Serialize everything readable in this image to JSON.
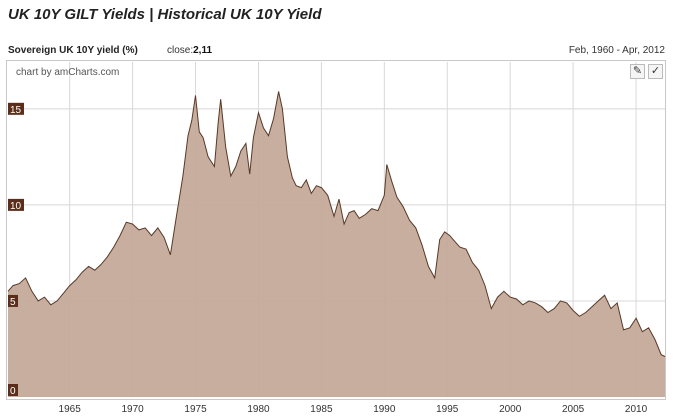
{
  "header": {
    "title": "UK 10Y GILT Yields | Historical UK 10Y Yield",
    "series_label": "Sovereign UK 10Y yield (%)",
    "close_label": "close:",
    "close_value": "2,11",
    "date_range": "Feb, 1960 - Apr, 2012"
  },
  "chart": {
    "credit": "chart by amCharts.com",
    "tools": [
      {
        "name": "zoom-tool-icon",
        "glyph": "✎"
      },
      {
        "name": "select-tool-icon",
        "glyph": "✓"
      }
    ],
    "fill_color": "#c4aa9a",
    "line_color": "#5a3826",
    "tick_badge_color": "#5a2e1a"
  },
  "chart_data": {
    "type": "area",
    "title": "",
    "xlabel": "",
    "ylabel": "",
    "xlim": [
      1960.1,
      2012.3
    ],
    "ylim": [
      0,
      16.5
    ],
    "grid": true,
    "x_tick_labels": [
      "1965",
      "1970",
      "1975",
      "1980",
      "1985",
      "1990",
      "1995",
      "2000",
      "2005",
      "2010"
    ],
    "y_tick_labels": [
      "0",
      "5",
      "10",
      "15"
    ],
    "series": [
      {
        "x": [
          1960.1,
          1960.5,
          1961.0,
          1961.5,
          1962.0,
          1962.5,
          1963.0,
          1963.5,
          1964.0,
          1964.5,
          1965.0,
          1965.5,
          1966.0,
          1966.5,
          1967.0,
          1967.5,
          1968.0,
          1968.5,
          1969.0,
          1969.5,
          1970.0,
          1970.5,
          1971.0,
          1971.5,
          1972.0,
          1972.5,
          1973.0,
          1973.5,
          1974.0,
          1974.4,
          1974.7,
          1975.0,
          1975.3,
          1975.6,
          1976.0,
          1976.5,
          1976.8,
          1977.0,
          1977.4,
          1977.8,
          1978.2,
          1978.6,
          1979.0,
          1979.3,
          1979.6,
          1980.0,
          1980.4,
          1980.8,
          1981.2,
          1981.6,
          1981.9,
          1982.3,
          1982.7,
          1983.0,
          1983.4,
          1983.8,
          1984.2,
          1984.6,
          1985.0,
          1985.5,
          1986.0,
          1986.4,
          1986.8,
          1987.2,
          1987.6,
          1988.0,
          1988.5,
          1989.0,
          1989.5,
          1990.0,
          1990.2,
          1990.6,
          1991.0,
          1991.5,
          1992.0,
          1992.5,
          1993.0,
          1993.5,
          1994.0,
          1994.4,
          1994.8,
          1995.2,
          1995.6,
          1996.0,
          1996.5,
          1997.0,
          1997.5,
          1998.0,
          1998.5,
          1999.0,
          1999.5,
          2000.0,
          2000.5,
          2001.0,
          2001.5,
          2002.0,
          2002.5,
          2003.0,
          2003.5,
          2004.0,
          2004.5,
          2005.0,
          2005.5,
          2006.0,
          2006.5,
          2007.0,
          2007.5,
          2008.0,
          2008.5,
          2009.0,
          2009.5,
          2010.0,
          2010.5,
          2011.0,
          2011.5,
          2012.0,
          2012.3
        ],
        "values": [
          5.5,
          5.8,
          5.9,
          6.2,
          5.5,
          5.0,
          5.2,
          4.8,
          5.0,
          5.4,
          5.8,
          6.1,
          6.5,
          6.8,
          6.6,
          6.9,
          7.3,
          7.8,
          8.4,
          9.1,
          9.0,
          8.7,
          8.8,
          8.4,
          8.8,
          8.3,
          7.4,
          9.5,
          11.5,
          13.6,
          14.4,
          15.7,
          13.8,
          13.5,
          12.5,
          12.0,
          14.3,
          15.5,
          13.0,
          11.5,
          12.0,
          12.8,
          13.2,
          11.6,
          13.5,
          14.8,
          14.0,
          13.6,
          14.5,
          15.9,
          15.0,
          12.5,
          11.4,
          11.0,
          10.9,
          11.3,
          10.6,
          11.0,
          10.9,
          10.5,
          9.4,
          10.3,
          9.0,
          9.6,
          9.7,
          9.3,
          9.5,
          9.8,
          9.7,
          10.5,
          12.1,
          11.2,
          10.4,
          9.9,
          9.2,
          8.8,
          7.9,
          6.8,
          6.2,
          8.2,
          8.6,
          8.4,
          8.1,
          7.8,
          7.7,
          7.0,
          6.6,
          5.8,
          4.6,
          5.2,
          5.5,
          5.2,
          5.1,
          4.8,
          5.0,
          4.9,
          4.7,
          4.4,
          4.6,
          5.0,
          4.9,
          4.5,
          4.2,
          4.4,
          4.7,
          5.0,
          5.3,
          4.6,
          4.9,
          3.5,
          3.6,
          4.1,
          3.4,
          3.6,
          3.0,
          2.2,
          2.11
        ]
      }
    ]
  }
}
